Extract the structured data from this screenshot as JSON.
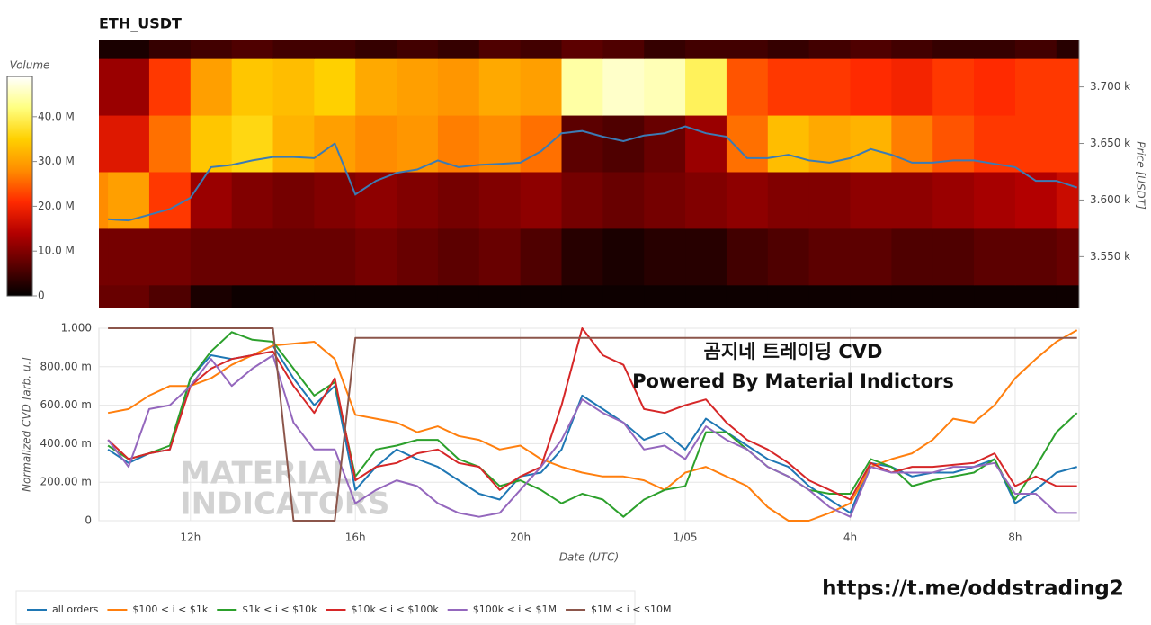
{
  "chart_data": [
    {
      "type": "heatmap",
      "title": "ETH_USDT",
      "colorbar_label": "Volume",
      "ylabel": "Price [USDT]",
      "xlim": [
        9.78,
        33.55
      ],
      "ylim": [
        3505,
        3741
      ],
      "yticks": [
        {
          "value": 3550,
          "label": "3.550 k"
        },
        {
          "value": 3600,
          "label": "3.600 k"
        },
        {
          "value": 3650,
          "label": "3.650 k"
        },
        {
          "value": 3700,
          "label": "3.700 k"
        }
      ],
      "x_bins": [
        9,
        10,
        11,
        12,
        13,
        14,
        15,
        16,
        17,
        18,
        19,
        20,
        21,
        22,
        23,
        24,
        25,
        26,
        27,
        28,
        29,
        30,
        31,
        32,
        33,
        34
      ],
      "y_bins": [
        3475,
        3525,
        3575,
        3625,
        3675,
        3725,
        3775
      ],
      "z": [
        [
          8,
          8,
          6,
          2,
          1,
          1,
          1,
          1,
          1,
          1,
          1,
          1,
          1,
          1,
          1,
          1,
          1,
          1,
          1,
          1,
          1,
          1,
          1,
          1,
          1
        ],
        [
          9,
          9,
          9,
          8,
          8,
          8,
          8,
          9,
          8,
          7,
          8,
          6,
          3,
          2,
          3,
          3,
          5,
          6,
          7,
          7,
          6,
          6,
          7,
          7,
          8
        ],
        [
          28,
          30,
          22,
          12,
          10,
          9,
          10,
          11,
          10,
          9,
          10,
          11,
          9,
          8,
          9,
          10,
          11,
          10,
          10,
          11,
          11,
          12,
          13,
          14,
          16
        ],
        [
          18,
          18,
          26,
          34,
          36,
          32,
          30,
          28,
          29,
          27,
          28,
          26,
          7,
          6,
          8,
          12,
          26,
          33,
          31,
          32,
          27,
          24,
          22,
          22,
          22
        ],
        [
          12,
          12,
          22,
          30,
          34,
          33,
          35,
          31,
          30,
          29,
          31,
          30,
          44,
          46,
          45,
          40,
          24,
          22,
          22,
          21,
          20,
          22,
          21,
          22,
          22
        ],
        [
          2,
          2,
          4,
          5,
          6,
          5,
          5,
          4,
          5,
          4,
          6,
          5,
          7,
          6,
          4,
          5,
          5,
          4,
          5,
          6,
          5,
          4,
          4,
          5,
          3
        ]
      ],
      "clim": [
        0,
        49
      ],
      "cticks": [
        0,
        {
          "value": 10,
          "label": "10.0 M"
        },
        {
          "value": 20,
          "label": "20.0 M"
        },
        {
          "value": 30,
          "label": "30.0 M"
        },
        {
          "value": 40,
          "label": "40.0 M"
        }
      ],
      "colormap": [
        "#000000",
        "#5c0000",
        "#b30000",
        "#ff2a00",
        "#ff8c00",
        "#ffd000",
        "#ffff80",
        "#ffffff"
      ],
      "line": {
        "color": "#3b7bb5",
        "x": [
          10,
          10.5,
          11,
          11.5,
          12,
          12.5,
          13,
          13.5,
          14,
          14.5,
          15,
          15.5,
          16,
          16.5,
          17,
          17.5,
          18,
          18.5,
          19,
          19.5,
          20,
          20.5,
          21,
          21.5,
          22,
          22.5,
          23,
          23.5,
          24,
          24.5,
          25,
          25.5,
          26,
          26.5,
          27,
          27.5,
          28,
          28.5,
          29,
          29.5,
          30,
          30.5,
          31,
          31.5,
          32,
          32.5,
          33,
          33.5
        ],
        "values": [
          3583,
          3582,
          3587,
          3592,
          3602,
          3629,
          3631,
          3635,
          3638,
          3638,
          3637,
          3650,
          3605,
          3617,
          3624,
          3627,
          3635,
          3629,
          3631,
          3632,
          3633,
          3643,
          3659,
          3661,
          3656,
          3652,
          3657,
          3659,
          3665,
          3659,
          3656,
          3637,
          3637,
          3640,
          3635,
          3633,
          3637,
          3645,
          3640,
          3633,
          3633,
          3635,
          3635,
          3632,
          3629,
          3617,
          3617,
          3611
        ]
      }
    },
    {
      "type": "line",
      "xlabel": "Date (UTC)",
      "ylabel": "Normalized CVD [arb. u.]",
      "annotations": [
        "곰지네 트레이딩 CVD",
        "Powered By Material Indictors"
      ],
      "watermark": [
        "MATERIAL",
        "INDICATORS"
      ],
      "xlim": [
        9.78,
        33.55
      ],
      "ylim": [
        0,
        1
      ],
      "xticks": [
        {
          "value": 12,
          "label": "12h"
        },
        {
          "value": 16,
          "label": "16h"
        },
        {
          "value": 20,
          "label": "20h"
        },
        {
          "value": 24,
          "label": "1/05"
        },
        {
          "value": 28,
          "label": "4h"
        },
        {
          "value": 32,
          "label": "8h"
        }
      ],
      "yticks": [
        0,
        {
          "value": 0.2,
          "label": "200.00 m"
        },
        {
          "value": 0.4,
          "label": "400.00 m"
        },
        {
          "value": 0.6,
          "label": "600.00 m"
        },
        {
          "value": 0.8,
          "label": "800.00 m"
        },
        {
          "value": 1,
          "label": "1.000"
        }
      ],
      "grid": true,
      "x": [
        10,
        10.5,
        11,
        11.5,
        12,
        12.5,
        13,
        13.5,
        14,
        14.5,
        15,
        15.5,
        16,
        16.5,
        17,
        17.5,
        18,
        18.5,
        19,
        19.5,
        20,
        20.5,
        21,
        21.5,
        22,
        22.5,
        23,
        23.5,
        24,
        24.5,
        25,
        25.5,
        26,
        26.5,
        27,
        27.5,
        28,
        28.5,
        29,
        29.5,
        30,
        30.5,
        31,
        31.5,
        32,
        32.5,
        33,
        33.5
      ],
      "series": [
        {
          "name": "all orders",
          "color": "#1f77b4",
          "values": [
            0.37,
            0.3,
            0.35,
            0.37,
            0.74,
            0.86,
            0.84,
            0.86,
            0.91,
            0.74,
            0.6,
            0.7,
            0.16,
            0.28,
            0.37,
            0.32,
            0.28,
            0.21,
            0.14,
            0.11,
            0.23,
            0.25,
            0.37,
            0.65,
            0.58,
            0.51,
            0.42,
            0.46,
            0.37,
            0.53,
            0.46,
            0.39,
            0.32,
            0.28,
            0.18,
            0.11,
            0.04,
            0.3,
            0.28,
            0.23,
            0.25,
            0.25,
            0.28,
            0.32,
            0.09,
            0.16,
            0.25,
            0.28
          ]
        },
        {
          "name": "$100 < i < $1k",
          "color": "#ff7f0e",
          "values": [
            0.56,
            0.58,
            0.65,
            0.7,
            0.7,
            0.74,
            0.81,
            0.86,
            0.91,
            0.92,
            0.93,
            0.84,
            0.55,
            0.53,
            0.51,
            0.46,
            0.49,
            0.44,
            0.42,
            0.37,
            0.39,
            0.32,
            0.28,
            0.25,
            0.23,
            0.23,
            0.21,
            0.16,
            0.25,
            0.28,
            0.23,
            0.18,
            0.07,
            0.0,
            0.0,
            0.04,
            0.09,
            0.28,
            0.32,
            0.35,
            0.42,
            0.53,
            0.51,
            0.6,
            0.74,
            0.84,
            0.93,
            0.99
          ]
        },
        {
          "name": "$1k < i < $10k",
          "color": "#2ca02c",
          "values": [
            0.39,
            0.32,
            0.35,
            0.39,
            0.74,
            0.88,
            0.98,
            0.94,
            0.93,
            0.79,
            0.65,
            0.72,
            0.23,
            0.37,
            0.39,
            0.42,
            0.42,
            0.32,
            0.28,
            0.18,
            0.21,
            0.16,
            0.09,
            0.14,
            0.11,
            0.02,
            0.11,
            0.16,
            0.18,
            0.46,
            0.46,
            0.37,
            0.28,
            0.23,
            0.16,
            0.14,
            0.14,
            0.32,
            0.28,
            0.18,
            0.21,
            0.23,
            0.25,
            0.32,
            0.11,
            0.28,
            0.46,
            0.56
          ]
        },
        {
          "name": "$10k < i < $100k",
          "color": "#d62728",
          "values": [
            0.42,
            0.32,
            0.35,
            0.37,
            0.7,
            0.79,
            0.84,
            0.86,
            0.88,
            0.7,
            0.56,
            0.74,
            0.21,
            0.28,
            0.3,
            0.35,
            0.37,
            0.3,
            0.28,
            0.16,
            0.23,
            0.28,
            0.6,
            1.0,
            0.86,
            0.81,
            0.58,
            0.56,
            0.6,
            0.63,
            0.51,
            0.42,
            0.37,
            0.3,
            0.21,
            0.16,
            0.11,
            0.3,
            0.25,
            0.28,
            0.28,
            0.29,
            0.3,
            0.35,
            0.18,
            0.23,
            0.18,
            0.18
          ]
        },
        {
          "name": "$100k < i < $1M",
          "color": "#9467bd",
          "values": [
            0.42,
            0.28,
            0.58,
            0.6,
            0.7,
            0.84,
            0.7,
            0.79,
            0.86,
            0.51,
            0.37,
            0.37,
            0.09,
            0.16,
            0.21,
            0.18,
            0.09,
            0.04,
            0.02,
            0.04,
            0.16,
            0.28,
            0.42,
            0.63,
            0.56,
            0.51,
            0.37,
            0.39,
            0.32,
            0.49,
            0.42,
            0.37,
            0.28,
            0.23,
            0.16,
            0.07,
            0.02,
            0.28,
            0.25,
            0.25,
            0.25,
            0.28,
            0.28,
            0.3,
            0.14,
            0.14,
            0.04,
            0.04
          ]
        },
        {
          "name": "$1M < i < $10M",
          "color": "#8c564b",
          "values": [
            1,
            1,
            1,
            1,
            1,
            1,
            1,
            1,
            1,
            0,
            0,
            0,
            0.95,
            0.95,
            0.95,
            0.95,
            0.95,
            0.95,
            0.95,
            0.95,
            0.95,
            0.95,
            0.95,
            0.95,
            0.95,
            0.95,
            0.95,
            0.95,
            0.95,
            0.95,
            0.95,
            0.95,
            0.95,
            0.95,
            0.95,
            0.95,
            0.95,
            0.95,
            0.95,
            0.95,
            0.95,
            0.95,
            0.95,
            0.95,
            0.95,
            0.95,
            0.95,
            0.95
          ]
        }
      ]
    }
  ],
  "footer": {
    "link": "https://t.me/oddstrading2"
  }
}
